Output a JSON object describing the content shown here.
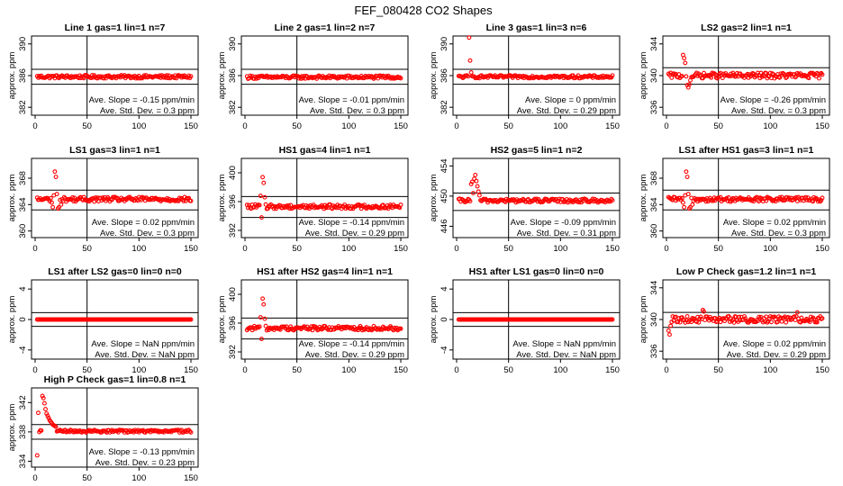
{
  "figure_title": "FEF_080428  CO2 Shapes",
  "chart_data": [
    {
      "type": "scatter",
      "title": "Line 1 gas=1 lin=1 n=7",
      "ylabel": "approx. ppm",
      "xlim": [
        0,
        150
      ],
      "ylim": [
        381,
        391
      ],
      "yticks": [
        382,
        386,
        390
      ],
      "xticks": [
        0,
        50,
        100,
        150
      ],
      "hlines": [
        384.9,
        386.8
      ],
      "vline": 50,
      "stats": [
        "Ave. Slope = -0.15 ppm/min",
        "Ave. Std. Dev. = 0.3 ppm"
      ],
      "shape": {
        "base": 385.85,
        "noise": 0.2
      }
    },
    {
      "type": "scatter",
      "title": "Line 2 gas=1 lin=2 n=7",
      "ylabel": "approx. ppm",
      "xlim": [
        0,
        150
      ],
      "ylim": [
        381,
        391
      ],
      "yticks": [
        382,
        386,
        390
      ],
      "xticks": [
        0,
        50,
        100,
        150
      ],
      "hlines": [
        384.9,
        386.8
      ],
      "vline": 50,
      "stats": [
        "Ave. Slope = -0.01 ppm/min",
        "Ave. Std. Dev. = 0.3 ppm"
      ],
      "shape": {
        "base": 385.8,
        "noise": 0.2
      }
    },
    {
      "type": "scatter",
      "title": "Line 3 gas=1 lin=3 n=6",
      "ylabel": "approx. ppm",
      "xlim": [
        0,
        150
      ],
      "ylim": [
        381,
        391
      ],
      "yticks": [
        382,
        386,
        390
      ],
      "xticks": [
        0,
        50,
        100,
        150
      ],
      "hlines": [
        384.9,
        386.8
      ],
      "vline": 50,
      "stats": [
        "Ave. Slope = 0 ppm/min",
        "Ave. Std. Dev. = 0.29 ppm"
      ],
      "shape": {
        "base": 385.85,
        "noise": 0.18,
        "extra": [
          [
            12,
            390.8
          ],
          [
            13,
            387.9
          ],
          [
            14,
            386.4
          ]
        ]
      }
    },
    {
      "type": "scatter",
      "title": "LS2 gas=2 lin=1 n=1",
      "ylabel": "approx. ppm",
      "xlim": [
        0,
        150
      ],
      "ylim": [
        335,
        345
      ],
      "yticks": [
        336,
        340,
        344
      ],
      "xticks": [
        0,
        50,
        100,
        150
      ],
      "hlines": [
        338.9,
        341.0
      ],
      "vline": 50,
      "stats": [
        "Ave. Slope = -0.26 ppm/min",
        "Ave. Std. Dev. = 0.3 ppm"
      ],
      "shape": {
        "base": 340.0,
        "noise": 0.35,
        "extra": [
          [
            16,
            342.6
          ],
          [
            17,
            342.2
          ],
          [
            18,
            341.6
          ],
          [
            19,
            339.9
          ],
          [
            20,
            338.8
          ],
          [
            21,
            338.5
          ],
          [
            22,
            338.9
          ],
          [
            23,
            339.4
          ]
        ]
      }
    },
    {
      "type": "scatter",
      "title": "LS1 gas=3 lin=1 n=1",
      "ylabel": "approx. ppm",
      "xlim": [
        0,
        150
      ],
      "ylim": [
        359,
        371
      ],
      "yticks": [
        360,
        364,
        368
      ],
      "xticks": [
        0,
        50,
        100,
        150
      ],
      "hlines": [
        363.2,
        366.2
      ],
      "vline": 50,
      "stats": [
        "Ave. Slope = 0.02 ppm/min",
        "Ave. Std. Dev. = 0.3 ppm"
      ],
      "shape": {
        "base": 364.8,
        "noise": 0.35,
        "extra": [
          [
            16,
            364.3
          ],
          [
            17,
            363.6
          ],
          [
            18,
            365.4
          ],
          [
            19,
            369.0
          ],
          [
            20,
            368.2
          ],
          [
            21,
            365.6
          ],
          [
            22,
            363.4
          ],
          [
            23,
            363.6
          ],
          [
            25,
            364.0
          ]
        ]
      }
    },
    {
      "type": "scatter",
      "title": "HS1 gas=4 lin=1 n=1",
      "ylabel": "approx. ppm",
      "xlim": [
        0,
        150
      ],
      "ylim": [
        391,
        402
      ],
      "yticks": [
        392,
        396,
        400
      ],
      "xticks": [
        0,
        50,
        100,
        150
      ],
      "hlines": [
        393.8,
        396.7
      ],
      "vline": 50,
      "stats": [
        "Ave. Slope = -0.14 ppm/min",
        "Ave. Std. Dev. = 0.29 ppm"
      ],
      "shape": {
        "base": 395.3,
        "noise": 0.3,
        "extra": [
          [
            15,
            396.8
          ],
          [
            16,
            393.8
          ],
          [
            17,
            399.4
          ],
          [
            18,
            398.6
          ],
          [
            19,
            396.6
          ],
          [
            20,
            395.6
          ],
          [
            21,
            395.0
          ]
        ]
      }
    },
    {
      "type": "scatter",
      "title": "HS2 gas=5 lin=1 n=2",
      "ylabel": "approx. ppm",
      "xlim": [
        0,
        150
      ],
      "ylim": [
        444.5,
        455
      ],
      "yticks": [
        446,
        450,
        454
      ],
      "xticks": [
        0,
        50,
        100,
        150
      ],
      "hlines": [
        448.1,
        450.4
      ],
      "vline": 50,
      "stats": [
        "Ave. Slope = -0.09 ppm/min",
        "Ave. Std. Dev. = 0.31 ppm"
      ],
      "shape": {
        "base": 449.4,
        "noise": 0.25,
        "extra": [
          [
            14,
            451.6
          ],
          [
            15,
            451.9
          ],
          [
            16,
            450.4
          ],
          [
            17,
            452.3
          ],
          [
            18,
            452.8
          ],
          [
            19,
            452.0
          ],
          [
            20,
            451.3
          ],
          [
            21,
            450.6
          ],
          [
            22,
            450.1
          ]
        ]
      }
    },
    {
      "type": "scatter",
      "title": "LS1 after HS1 gas=3 lin=1 n=1",
      "ylabel": "approx. ppm",
      "xlim": [
        0,
        150
      ],
      "ylim": [
        359,
        371
      ],
      "yticks": [
        360,
        364,
        368
      ],
      "xticks": [
        0,
        50,
        100,
        150
      ],
      "hlines": [
        363.2,
        366.2
      ],
      "vline": 50,
      "stats": [
        "Ave. Slope = 0.02 ppm/min",
        "Ave. Std. Dev. = 0.3 ppm"
      ],
      "shape": {
        "base": 364.8,
        "noise": 0.35,
        "extra": [
          [
            16,
            364.3
          ],
          [
            17,
            363.6
          ],
          [
            18,
            365.4
          ],
          [
            19,
            369.0
          ],
          [
            20,
            368.2
          ],
          [
            21,
            365.6
          ],
          [
            22,
            363.4
          ],
          [
            23,
            363.6
          ],
          [
            25,
            364.0
          ]
        ]
      }
    },
    {
      "type": "scatter",
      "title": "LS1 after LS2 gas=0 lin=0 n=0",
      "ylabel": "approx. ppm",
      "xlim": [
        0,
        150
      ],
      "ylim": [
        -5.2,
        5.2
      ],
      "yticks": [
        -4,
        0,
        4
      ],
      "xticks": [
        0,
        50,
        100,
        150
      ],
      "hlines": [
        -0.9,
        0.9
      ],
      "vline": 50,
      "stats": [
        "Ave. Slope = NaN ppm/min",
        "Ave. Std. Dev. = NaN ppm"
      ],
      "shape": {
        "base": 0,
        "noise": 0
      }
    },
    {
      "type": "scatter",
      "title": "HS1 after HS2 gas=4 lin=1 n=1",
      "ylabel": "approx. ppm",
      "xlim": [
        0,
        150
      ],
      "ylim": [
        391,
        402
      ],
      "yticks": [
        392,
        396,
        400
      ],
      "xticks": [
        0,
        50,
        100,
        150
      ],
      "hlines": [
        393.8,
        396.7
      ],
      "vline": 50,
      "stats": [
        "Ave. Slope = -0.14 ppm/min",
        "Ave. Std. Dev. = 0.29 ppm"
      ],
      "shape": {
        "base": 395.3,
        "noise": 0.3,
        "extra": [
          [
            15,
            396.8
          ],
          [
            16,
            393.8
          ],
          [
            17,
            399.4
          ],
          [
            18,
            398.6
          ],
          [
            19,
            396.6
          ],
          [
            20,
            395.6
          ],
          [
            21,
            395.0
          ]
        ]
      }
    },
    {
      "type": "scatter",
      "title": "HS1 after LS1 gas=0 lin=0 n=0",
      "ylabel": "approx. ppm",
      "xlim": [
        0,
        150
      ],
      "ylim": [
        -5.2,
        5.2
      ],
      "yticks": [
        -4,
        0,
        4
      ],
      "xticks": [
        0,
        50,
        100,
        150
      ],
      "hlines": [
        -0.9,
        0.9
      ],
      "vline": 50,
      "stats": [
        "Ave. Slope = NaN ppm/min",
        "Ave. Std. Dev. = NaN ppm"
      ],
      "shape": {
        "base": 0,
        "noise": 0
      }
    },
    {
      "type": "scatter",
      "title": "Low P Check gas=1.2 lin=1 n=1",
      "ylabel": "approx. ppm",
      "xlim": [
        0,
        150
      ],
      "ylim": [
        335,
        345
      ],
      "yticks": [
        336,
        340,
        344
      ],
      "xticks": [
        0,
        50,
        100,
        150
      ],
      "hlines": [
        339.0,
        340.9
      ],
      "vline": 50,
      "stats": [
        "Ave. Slope = 0.02 ppm/min",
        "Ave. Std. Dev. = 0.29 ppm"
      ],
      "shape": {
        "base": 340.0,
        "noise": 0.4,
        "extra": [
          [
            2,
            338.6
          ],
          [
            3,
            338.1
          ],
          [
            4,
            339.2
          ],
          [
            35,
            341.2
          ],
          [
            36,
            341.0
          ],
          [
            126,
            340.9
          ]
        ]
      }
    },
    {
      "type": "scatter",
      "title": "High P Check gas=1 lin=0.8 n=1",
      "ylabel": "approx. ppm",
      "xlim": [
        0,
        150
      ],
      "ylim": [
        333.2,
        344
      ],
      "yticks": [
        334,
        338,
        342
      ],
      "xticks": [
        0,
        50,
        100,
        150
      ],
      "hlines": [
        337.0,
        339.0
      ],
      "vline": 50,
      "stats": [
        "Ave. Slope = -0.13 ppm/min",
        "Ave. Std. Dev. = 0.23 ppm"
      ],
      "shape": {
        "base": 338.1,
        "noise": 0.18,
        "extra": [
          [
            2,
            334.8
          ],
          [
            3,
            340.6
          ],
          [
            7,
            342.9
          ],
          [
            8,
            342.6
          ],
          [
            9,
            341.9
          ],
          [
            10,
            341.1
          ],
          [
            11,
            340.5
          ],
          [
            12,
            340.2
          ],
          [
            13,
            339.9
          ],
          [
            14,
            339.6
          ],
          [
            15,
            339.4
          ],
          [
            16,
            339.2
          ],
          [
            17,
            339.0
          ],
          [
            18,
            338.9
          ],
          [
            19,
            338.8
          ],
          [
            20,
            338.7
          ]
        ]
      }
    }
  ]
}
